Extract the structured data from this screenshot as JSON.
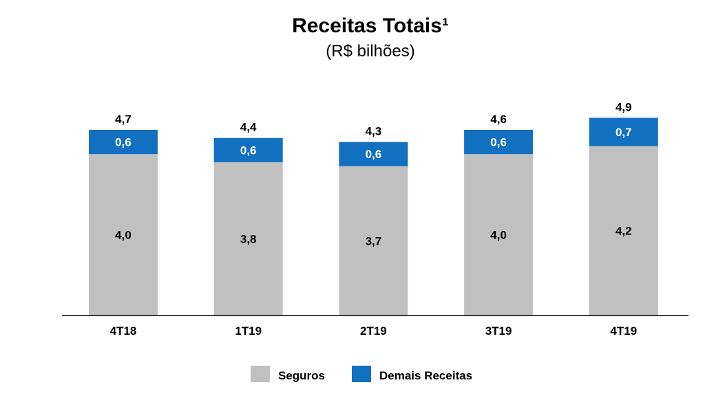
{
  "chart_data": {
    "type": "bar",
    "stacked": true,
    "title": "Receitas Totais¹",
    "subtitle": "(R$ bilhões)",
    "categories": [
      "4T18",
      "1T19",
      "2T19",
      "3T19",
      "4T19"
    ],
    "series": [
      {
        "name": "Seguros",
        "values": [
          4.0,
          3.8,
          3.7,
          4.0,
          4.2
        ],
        "labels": [
          "4,0",
          "3,8",
          "3,7",
          "4,0",
          "4,2"
        ],
        "color": "#c0c0c0"
      },
      {
        "name": "Demais Receitas",
        "values": [
          0.6,
          0.6,
          0.6,
          0.6,
          0.7
        ],
        "labels": [
          "0,6",
          "0,6",
          "0,6",
          "0,6",
          "0,7"
        ],
        "color": "#1170c0"
      }
    ],
    "totals": [
      4.7,
      4.4,
      4.3,
      4.6,
      4.9
    ],
    "total_labels": [
      "4,7",
      "4,4",
      "4,3",
      "4,6",
      "4,9"
    ],
    "xlabel": "",
    "ylabel": "",
    "ylim": [
      0,
      5
    ],
    "grid": false,
    "legend": "bottom"
  }
}
